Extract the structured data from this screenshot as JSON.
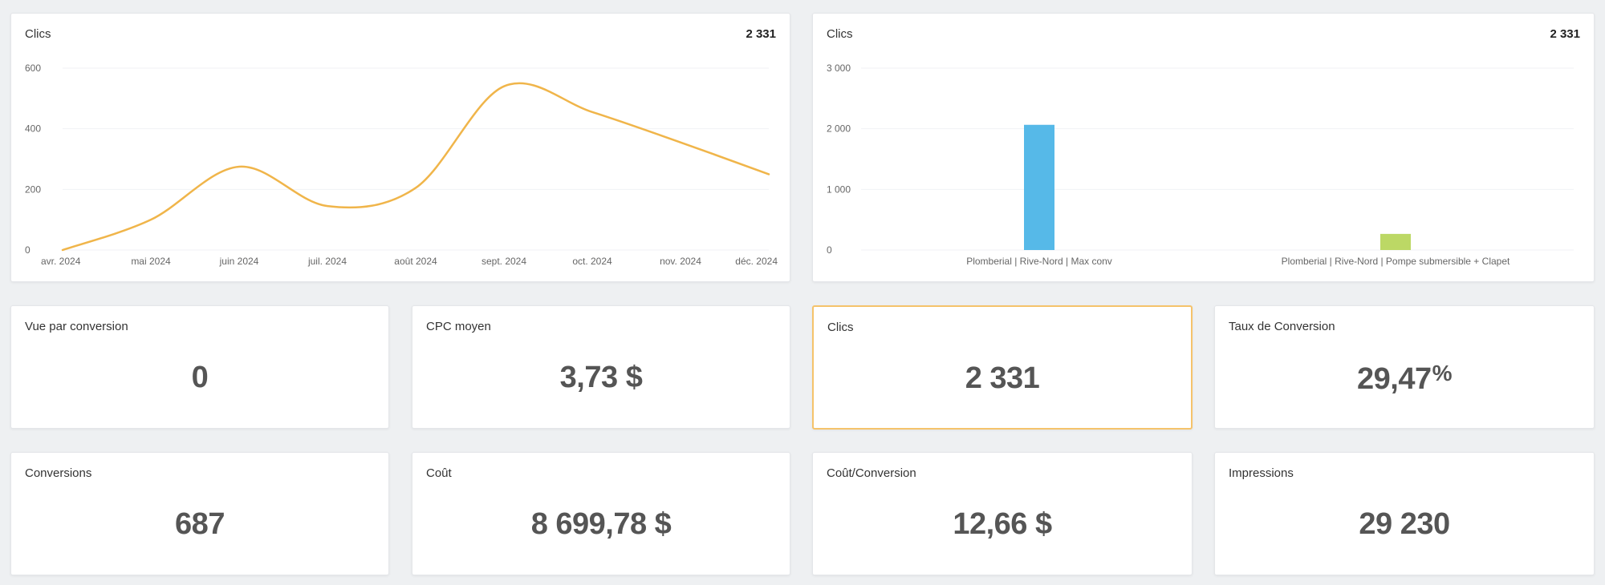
{
  "colors": {
    "line": "#f0b54a",
    "bar_blue": "#56b9e8",
    "bar_green": "#bcd865",
    "highlight_border": "#f5c36b"
  },
  "line_card": {
    "title": "Clics",
    "total": "2 331",
    "chart_data": {
      "type": "line",
      "x": [
        "avr. 2024",
        "mai 2024",
        "juin 2024",
        "juil. 2024",
        "août 2024",
        "sept. 2024",
        "oct. 2024",
        "nov. 2024",
        "déc. 2024"
      ],
      "series": [
        {
          "values": [
            0,
            100,
            275,
            145,
            205,
            540,
            455,
            355,
            250
          ]
        }
      ],
      "ylim": [
        0,
        600
      ],
      "yticks": [
        "0",
        "200",
        "400",
        "600"
      ]
    }
  },
  "bar_card": {
    "title": "Clics",
    "total": "2 331",
    "chart_data": {
      "type": "bar",
      "categories": [
        "Plomberial | Rive-Nord | Max conv",
        "Plomberial | Rive-Nord | Pompe submersible + Clapet"
      ],
      "values": [
        2065,
        266
      ],
      "ylim": [
        0,
        3000
      ],
      "yticks": [
        "0",
        "1 000",
        "2 000",
        "3 000"
      ]
    }
  },
  "kpis": [
    {
      "label": "Vue par conversion",
      "value": "0"
    },
    {
      "label": "CPC moyen",
      "value": "3,73 $"
    },
    {
      "label": "Clics",
      "value": "2 331"
    },
    {
      "label": "Taux de Conversion",
      "value": "29,47",
      "suffix": "%"
    },
    {
      "label": "Conversions",
      "value": "687"
    },
    {
      "label": "Coût",
      "value": "8 699,78 $"
    },
    {
      "label": "Coût/Conversion",
      "value": "12,66 $"
    },
    {
      "label": "Impressions",
      "value": "29 230"
    }
  ]
}
